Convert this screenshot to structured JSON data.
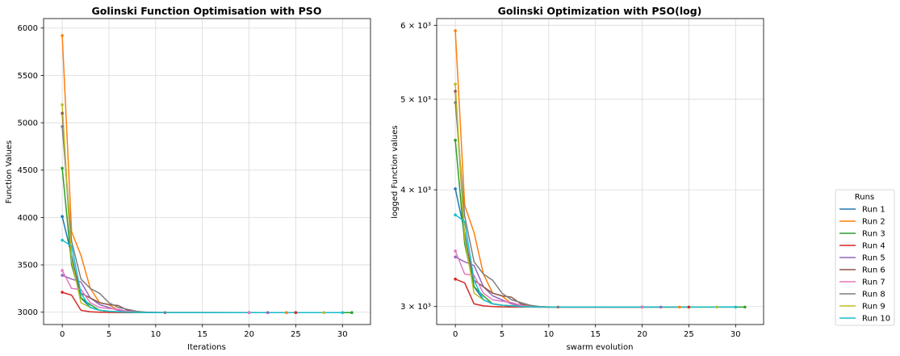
{
  "chart_data": [
    {
      "type": "line",
      "title": "Golinski Function Optimisation with PSO",
      "xlabel": "Iterations",
      "ylabel": "Function Values",
      "xlim": [
        -2,
        33
      ],
      "ylim": [
        2870,
        6100
      ],
      "yscale": "linear",
      "xticks": [
        0,
        5,
        10,
        15,
        20,
        25,
        30
      ],
      "yticks": [
        3000,
        3500,
        4000,
        4500,
        5000,
        5500,
        6000
      ],
      "ytick_labels": [
        "3000",
        "3500",
        "4000",
        "4500",
        "5000",
        "5500",
        "6000"
      ],
      "grid": true
    },
    {
      "type": "line",
      "title": "Golinski Optimization with PSO(log)",
      "xlabel": "swarm evolution",
      "ylabel": "logged Function values",
      "xlim": [
        -2,
        33
      ],
      "ylim": [
        2870,
        6100
      ],
      "yscale": "log",
      "xticks": [
        0,
        5,
        10,
        15,
        20,
        25,
        30
      ],
      "yticks": [
        3000,
        4000,
        5000,
        6000
      ],
      "ytick_labels": [
        "3 × 10³",
        "4 × 10³",
        "5 × 10³",
        "6 × 10³"
      ],
      "grid": true
    }
  ],
  "series": [
    {
      "name": "Run 1",
      "color": "#1f77b4",
      "x": [
        0,
        1,
        2,
        3,
        4,
        5,
        6,
        7,
        8,
        9,
        10,
        20
      ],
      "y": [
        4010,
        3600,
        3150,
        3050,
        3020,
        3010,
        3005,
        3002,
        3000,
        2998,
        2997,
        2996
      ]
    },
    {
      "name": "Run 2",
      "color": "#ff7f0e",
      "x": [
        0,
        1,
        2,
        3,
        4,
        5,
        6,
        7,
        8,
        9,
        10,
        24
      ],
      "y": [
        5920,
        3850,
        3600,
        3250,
        3100,
        3080,
        3020,
        3010,
        3005,
        3000,
        2997,
        2996
      ]
    },
    {
      "name": "Run 3",
      "color": "#2ca02c",
      "x": [
        0,
        1,
        2,
        3,
        4,
        5,
        6,
        7,
        8,
        9,
        10,
        31
      ],
      "y": [
        4520,
        3500,
        3150,
        3080,
        3020,
        3010,
        3005,
        3000,
        2998,
        2997,
        2996,
        2996
      ]
    },
    {
      "name": "Run 4",
      "color": "#d62728",
      "x": [
        0,
        1,
        2,
        3,
        4,
        5,
        6,
        7,
        8,
        9,
        10,
        25
      ],
      "y": [
        3210,
        3180,
        3020,
        3005,
        3000,
        2998,
        2997,
        2996,
        2996,
        2996,
        2996,
        2996
      ]
    },
    {
      "name": "Run 5",
      "color": "#9467bd",
      "x": [
        0,
        1,
        2,
        3,
        4,
        5,
        6,
        7,
        8,
        9,
        10,
        22
      ],
      "y": [
        3390,
        3350,
        3320,
        3150,
        3080,
        3050,
        3020,
        3005,
        3000,
        2998,
        2996,
        2996
      ]
    },
    {
      "name": "Run 6",
      "color": "#8c564b",
      "x": [
        0,
        1,
        2,
        3,
        4,
        5,
        6,
        7,
        8,
        9,
        10,
        20
      ],
      "y": [
        5100,
        3550,
        3200,
        3150,
        3100,
        3080,
        3070,
        3020,
        3000,
        2998,
        2996,
        2996
      ]
    },
    {
      "name": "Run 7",
      "color": "#e377c2",
      "x": [
        0,
        1,
        2,
        3,
        4,
        5,
        6,
        7,
        8,
        9,
        10,
        20
      ],
      "y": [
        3440,
        3250,
        3240,
        3100,
        3050,
        3040,
        3030,
        3010,
        3000,
        2998,
        2996,
        2996
      ]
    },
    {
      "name": "Run 8",
      "color": "#7f7f7f",
      "x": [
        0,
        1,
        2,
        3,
        4,
        5,
        6,
        7,
        8,
        9,
        10,
        11
      ],
      "y": [
        4960,
        3750,
        3350,
        3250,
        3200,
        3100,
        3050,
        3030,
        3010,
        3000,
        2998,
        2996
      ]
    },
    {
      "name": "Run 9",
      "color": "#bcbd22",
      "x": [
        0,
        1,
        2,
        3,
        4,
        5,
        6,
        7,
        8,
        9,
        10,
        28
      ],
      "y": [
        5190,
        3550,
        3100,
        3050,
        3020,
        3010,
        3005,
        3000,
        2998,
        2996,
        2996,
        2996
      ]
    },
    {
      "name": "Run 10",
      "color": "#17becf",
      "x": [
        0,
        1,
        2,
        3,
        4,
        5,
        6,
        7,
        8,
        9,
        10,
        30
      ],
      "y": [
        3760,
        3700,
        3200,
        3050,
        3020,
        3010,
        3005,
        3000,
        2998,
        2996,
        2996,
        2996
      ]
    }
  ],
  "legend": {
    "title": "Runs",
    "placement": "right, outside plots"
  }
}
